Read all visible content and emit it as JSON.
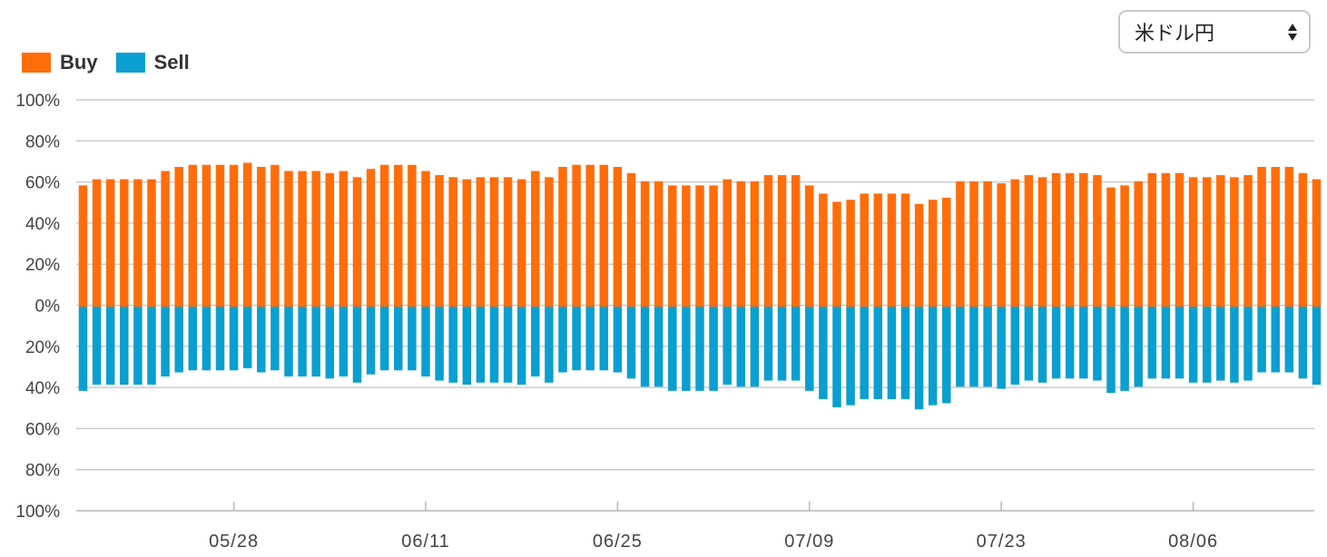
{
  "currency_select": {
    "selected": "米ドル円"
  },
  "legend": [
    {
      "label": "Buy",
      "color": "#ff6d0a"
    },
    {
      "label": "Sell",
      "color": "#0a9fd0"
    }
  ],
  "chart_data": {
    "type": "bar",
    "grid": true,
    "y_tick_labels": [
      "100%",
      "80%",
      "60%",
      "40%",
      "20%",
      "0%",
      "20%",
      "40%",
      "60%",
      "80%",
      "100%"
    ],
    "ylim": [
      -100,
      100
    ],
    "x_tick_labels": [
      "05/28",
      "06/11",
      "06/25",
      "07/09",
      "07/23",
      "08/06"
    ],
    "x_tick_bar_index": [
      11,
      25,
      39,
      53,
      67,
      81
    ],
    "series": [
      {
        "name": "Buy",
        "color": "#ff6d0a",
        "values": [
          59,
          62,
          62,
          62,
          62,
          62,
          66,
          68,
          69,
          69,
          69,
          69,
          70,
          68,
          69,
          66,
          66,
          66,
          65,
          66,
          63,
          67,
          69,
          69,
          69,
          66,
          64,
          63,
          62,
          63,
          63,
          63,
          62,
          66,
          63,
          68,
          69,
          69,
          69,
          68,
          65,
          61,
          61,
          59,
          59,
          59,
          59,
          62,
          61,
          61,
          64,
          64,
          64,
          59,
          55,
          51,
          52,
          55,
          55,
          55,
          55,
          50,
          52,
          53,
          61,
          61,
          61,
          60,
          62,
          64,
          63,
          65,
          65,
          65,
          64,
          58,
          59,
          61,
          65,
          65,
          65,
          63,
          63,
          64,
          63,
          64,
          68,
          68,
          68,
          65,
          62
        ]
      },
      {
        "name": "Sell",
        "color": "#0a9fd0",
        "values": [
          41,
          38,
          38,
          38,
          38,
          38,
          34,
          32,
          31,
          31,
          31,
          31,
          30,
          32,
          31,
          34,
          34,
          34,
          35,
          34,
          37,
          33,
          31,
          31,
          31,
          34,
          36,
          37,
          38,
          37,
          37,
          37,
          38,
          34,
          37,
          32,
          31,
          31,
          31,
          32,
          35,
          39,
          39,
          41,
          41,
          41,
          41,
          38,
          39,
          39,
          36,
          36,
          36,
          41,
          45,
          49,
          48,
          45,
          45,
          45,
          45,
          50,
          48,
          47,
          39,
          39,
          39,
          40,
          38,
          36,
          37,
          35,
          35,
          35,
          36,
          42,
          41,
          39,
          35,
          35,
          35,
          37,
          37,
          36,
          37,
          36,
          32,
          32,
          32,
          35,
          38
        ]
      }
    ]
  }
}
